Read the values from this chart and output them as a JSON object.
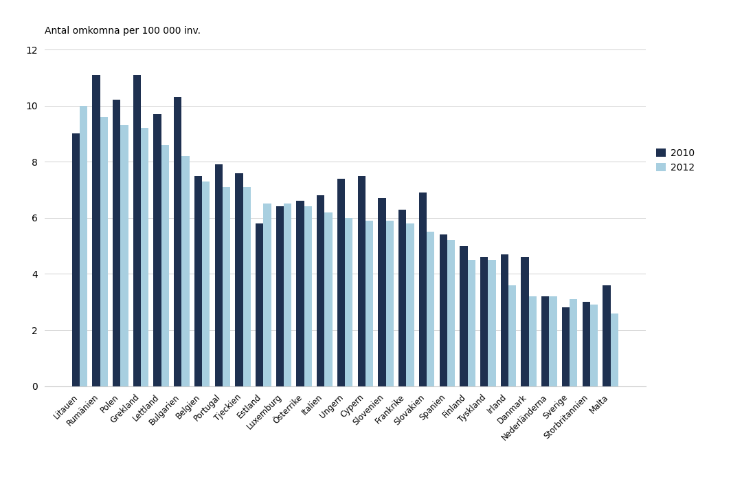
{
  "categories": [
    "Litauen",
    "Rumänien",
    "Polen",
    "Grekland",
    "Lettland",
    "Bulgarien",
    "Belgien",
    "Portugal",
    "Tjeckien",
    "Estland",
    "Luxemburg",
    "Österrike",
    "Italien",
    "Ungern",
    "Cypern",
    "Slovenien",
    "Frankrike",
    "Slovakien",
    "Spanien",
    "Finland",
    "Tyskland",
    "Irland",
    "Danmark",
    "Nederländerna",
    "Sverige",
    "Storbritannien",
    "Malta"
  ],
  "values_2010": [
    9.0,
    11.1,
    10.2,
    11.1,
    9.7,
    10.3,
    7.5,
    7.9,
    7.6,
    5.8,
    6.4,
    6.6,
    6.8,
    7.4,
    7.5,
    6.7,
    6.3,
    6.9,
    5.4,
    5.0,
    4.6,
    4.7,
    4.6,
    3.2,
    2.8,
    3.0,
    3.6
  ],
  "values_2012": [
    10.0,
    9.6,
    9.3,
    9.2,
    8.6,
    8.2,
    7.3,
    7.1,
    7.1,
    6.5,
    6.5,
    6.4,
    6.2,
    6.0,
    5.9,
    5.9,
    5.8,
    5.5,
    5.2,
    4.5,
    4.5,
    3.6,
    3.2,
    3.2,
    3.1,
    2.9,
    2.6
  ],
  "color_2010": "#1e3050",
  "color_2012": "#a8cfe0",
  "ylabel": "Antal omkomna per 100 000 inv.",
  "ylim": [
    0,
    12
  ],
  "yticks": [
    0,
    2,
    4,
    6,
    8,
    10,
    12
  ],
  "legend_labels": [
    "2010",
    "2012"
  ],
  "background_color": "#ffffff",
  "bar_width": 0.38,
  "figsize": [
    10.8,
    7.2
  ],
  "dpi": 100
}
